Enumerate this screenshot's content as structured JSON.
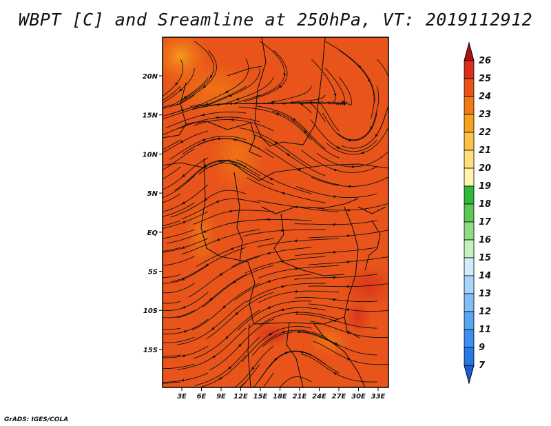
{
  "title": "WBPT [C] and Sreamline at 250hPa, VT: 2019112912",
  "credit": "GrADS: IGES/COLA",
  "map": {
    "lon_labels": [
      "3E",
      "6E",
      "9E",
      "12E",
      "15E",
      "18E",
      "21E",
      "24E",
      "27E",
      "30E",
      "33E"
    ],
    "lat_labels": [
      "20N",
      "15N",
      "10N",
      "5N",
      "EQ",
      "5S",
      "10S",
      "15S"
    ],
    "background_color": "#e8541a"
  },
  "colorbar": {
    "labels": [
      "7",
      "9",
      "11",
      "12",
      "13",
      "14",
      "15",
      "16",
      "17",
      "18",
      "19",
      "20",
      "21",
      "22",
      "23",
      "24",
      "25",
      "26"
    ],
    "colors": [
      "#1a5fd6",
      "#2a78e6",
      "#3c8fee",
      "#5aa5f2",
      "#82bdf6",
      "#aad4fa",
      "#d2ecfc",
      "#c6f0c0",
      "#8fdc88",
      "#5cc858",
      "#2fb83a",
      "#fff4b0",
      "#ffe07a",
      "#fcc24a",
      "#f7a21e",
      "#f07b14",
      "#e8541a",
      "#d8301a",
      "#b01010"
    ]
  }
}
